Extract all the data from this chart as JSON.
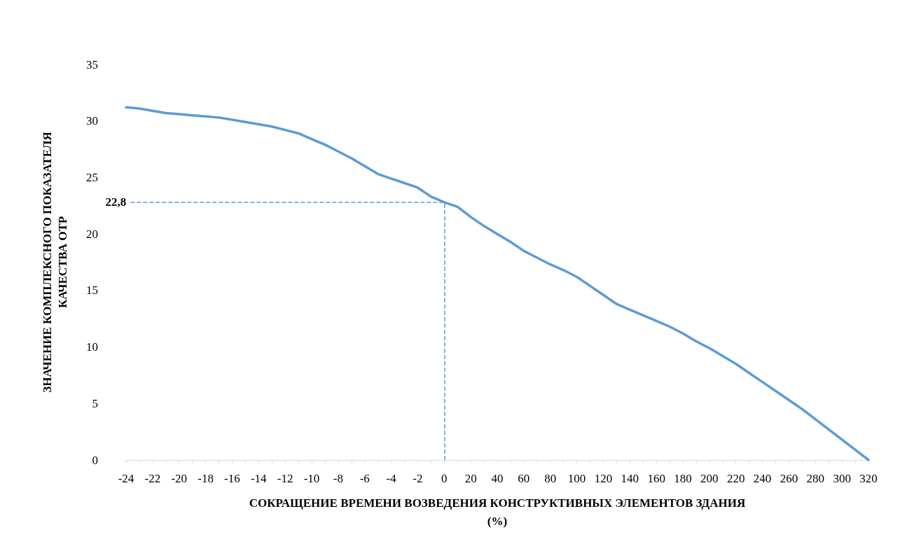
{
  "chart_data": {
    "type": "line",
    "xlabel": "СОКРАЩЕНИЕ ВРЕМЕНИ ВОЗВЕДЕНИЯ КОНСТРУКТИВНЫХ ЭЛЕМЕНТОВ ЗДАНИЯ\n(%)",
    "ylabel": "ЗНАЧЕНИЕ КОМПЛЕКСНОГО ПОКАЗАТЕЛЯ\nКАЧЕСТВА ОТР",
    "categories": [
      "-24",
      null,
      "-22",
      null,
      "-20",
      null,
      "-18",
      null,
      "-16",
      null,
      "-14",
      null,
      "-12",
      null,
      "-10",
      null,
      "-8",
      null,
      "-6",
      null,
      "-4",
      null,
      "-2",
      null,
      "0",
      null,
      "20",
      null,
      "40",
      null,
      "60",
      null,
      "80",
      null,
      "100",
      null,
      "120",
      null,
      "140",
      null,
      "160",
      null,
      "180",
      null,
      "200",
      null,
      "220",
      null,
      "240",
      null,
      "260",
      null,
      "280",
      null,
      "300",
      null,
      "320"
    ],
    "series": [
      {
        "color": "#5b9bd5",
        "values": [
          31.2,
          31.1,
          30.9,
          30.7,
          30.6,
          30.5,
          30.4,
          30.3,
          30.1,
          29.9,
          29.7,
          29.5,
          29.2,
          28.9,
          28.4,
          27.9,
          27.3,
          26.7,
          26.0,
          25.3,
          24.9,
          24.5,
          24.1,
          23.3,
          22.8,
          22.4,
          21.5,
          20.7,
          20.0,
          19.3,
          18.5,
          17.9,
          17.3,
          16.8,
          16.2,
          15.4,
          14.6,
          13.8,
          13.3,
          12.8,
          12.3,
          11.8,
          11.2,
          10.5,
          9.9,
          9.2,
          8.5,
          7.7,
          6.9,
          6.1,
          5.3,
          4.5,
          3.6,
          2.7,
          1.8,
          0.9,
          0
        ]
      }
    ],
    "ylim": [
      0,
      35
    ],
    "yticks": [
      0,
      5,
      10,
      15,
      20,
      25,
      30,
      35
    ],
    "grid": false,
    "marker": "none",
    "line_style": "solid",
    "ref_lines": [
      {
        "axis": "y",
        "value": 22.8,
        "label": "22,8",
        "color": "#5b9bd5",
        "line_style": "dashed"
      },
      {
        "axis": "x",
        "value": "0",
        "color": "#5b9bd5",
        "line_style": "dashed"
      }
    ]
  }
}
